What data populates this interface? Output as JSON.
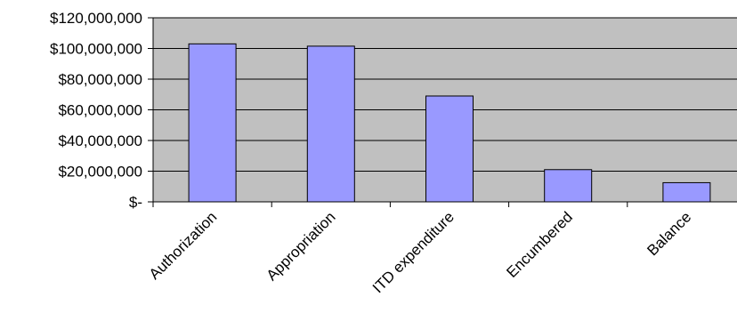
{
  "chart_data": {
    "type": "bar",
    "title": "",
    "xlabel": "",
    "ylabel": "",
    "categories": [
      "Authorization",
      "Appropriation",
      "ITD expenditure",
      "Encumbered",
      "Balance"
    ],
    "values": [
      103000000,
      101500000,
      69000000,
      21000000,
      12500000
    ],
    "ylim": [
      0,
      120000000
    ],
    "yticks": [
      0,
      20000000,
      40000000,
      60000000,
      80000000,
      100000000,
      120000000
    ],
    "ytick_labels": [
      "$-",
      "$20,000,000",
      "$40,000,000",
      "$60,000,000",
      "$80,000,000",
      "$100,000,000",
      "$120,000,000"
    ],
    "grid": true,
    "legend": "none",
    "colors": {
      "plot_background": "#c0c0c0",
      "bar_fill": "#9999ff",
      "bar_stroke": "#000000",
      "grid": "#000000"
    }
  }
}
